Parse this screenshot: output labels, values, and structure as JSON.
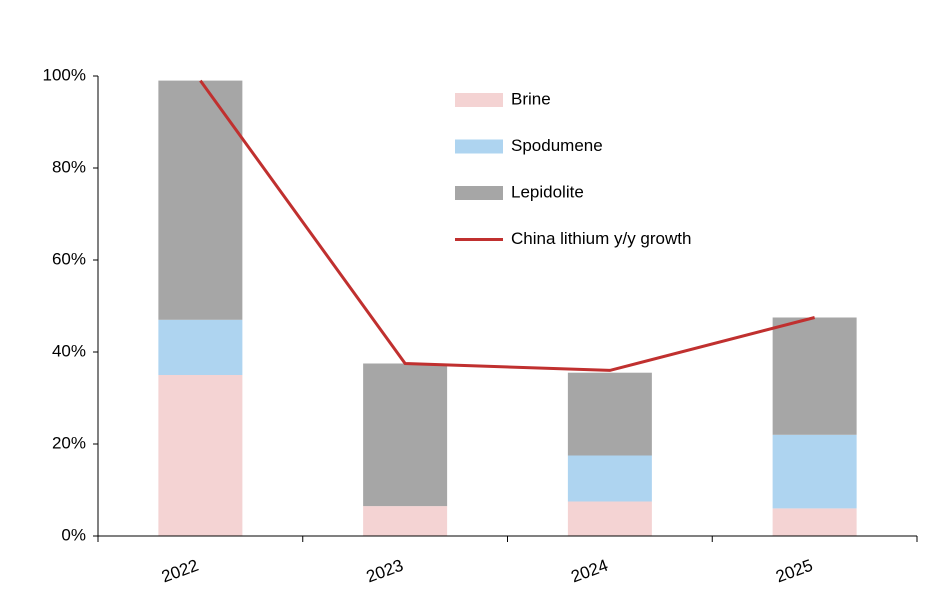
{
  "chart_data": {
    "type": "bar",
    "stacked": true,
    "categories": [
      "2022",
      "2023",
      "2024",
      "2025"
    ],
    "series": [
      {
        "name": "Brine",
        "type": "bar",
        "color": "#f4d3d3",
        "values": [
          35,
          6.5,
          7.5,
          6
        ]
      },
      {
        "name": "Spodumene",
        "type": "bar",
        "color": "#aed4f0",
        "values": [
          12,
          0,
          10,
          16
        ]
      },
      {
        "name": "Lepidolite",
        "type": "bar",
        "color": "#a6a6a6",
        "values": [
          52,
          31,
          18,
          25.5
        ]
      },
      {
        "name": "China lithium y/y growth",
        "type": "line",
        "color": "#c0302f",
        "values": [
          99,
          37.5,
          36,
          47.5
        ]
      }
    ],
    "ylim": [
      0,
      100
    ],
    "yticks": [
      {
        "value": 0,
        "label": "0%"
      },
      {
        "value": 20,
        "label": "20%"
      },
      {
        "value": 40,
        "label": "40%"
      },
      {
        "value": 60,
        "label": "60%"
      },
      {
        "value": 80,
        "label": "80%"
      },
      {
        "value": 100,
        "label": "100%"
      }
    ],
    "grid": false,
    "legend": "top-center"
  }
}
